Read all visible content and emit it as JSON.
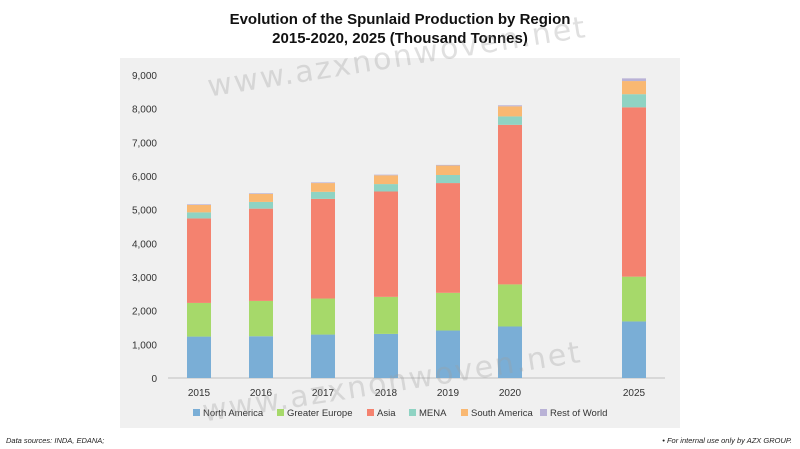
{
  "title_line1": "Evolution of the Spunlaid Production by Region",
  "title_line2": "2015-2020, 2025 (Thousand Tonnes)",
  "footer_left": "Data sources: INDA, EDANA;",
  "footer_right": "• For internal use only by AZX GROUP.",
  "watermark": "www.azxnonwoven.net",
  "chart_data": {
    "type": "bar",
    "stacked": true,
    "title": "Evolution of the Spunlaid Production by Region 2015-2020, 2025 (Thousand Tonnes)",
    "categories": [
      "2015",
      "2016",
      "2017",
      "2018",
      "2019",
      "2020",
      "2025"
    ],
    "ylim": [
      0,
      9000
    ],
    "yticks": [
      0,
      1000,
      2000,
      3000,
      4000,
      5000,
      6000,
      7000,
      8000,
      9000
    ],
    "ytick_labels": [
      "0",
      "1,000",
      "2,000",
      "3,000",
      "4,000",
      "5,000",
      "6,000",
      "7,000",
      "8,000",
      "9,000"
    ],
    "grid": false,
    "legend": "bottom",
    "series": [
      {
        "name": "North America",
        "color": "#7aaed6",
        "values": [
          1230,
          1240,
          1290,
          1310,
          1410,
          1530,
          1680
        ]
      },
      {
        "name": "Greater Europe",
        "color": "#a6d96a",
        "values": [
          1000,
          1050,
          1070,
          1100,
          1120,
          1250,
          1330
        ]
      },
      {
        "name": "Asia",
        "color": "#f4826f",
        "values": [
          2510,
          2740,
          2960,
          3130,
          3260,
          4740,
          5030
        ]
      },
      {
        "name": "MENA",
        "color": "#8fd3c3",
        "values": [
          180,
          200,
          210,
          220,
          240,
          250,
          390
        ]
      },
      {
        "name": "South America",
        "color": "#f9b872",
        "values": [
          220,
          240,
          260,
          260,
          280,
          300,
          390
        ]
      },
      {
        "name": "Rest of World",
        "color": "#b9b2d6",
        "values": [
          20,
          20,
          20,
          20,
          20,
          30,
          80
        ]
      }
    ]
  }
}
